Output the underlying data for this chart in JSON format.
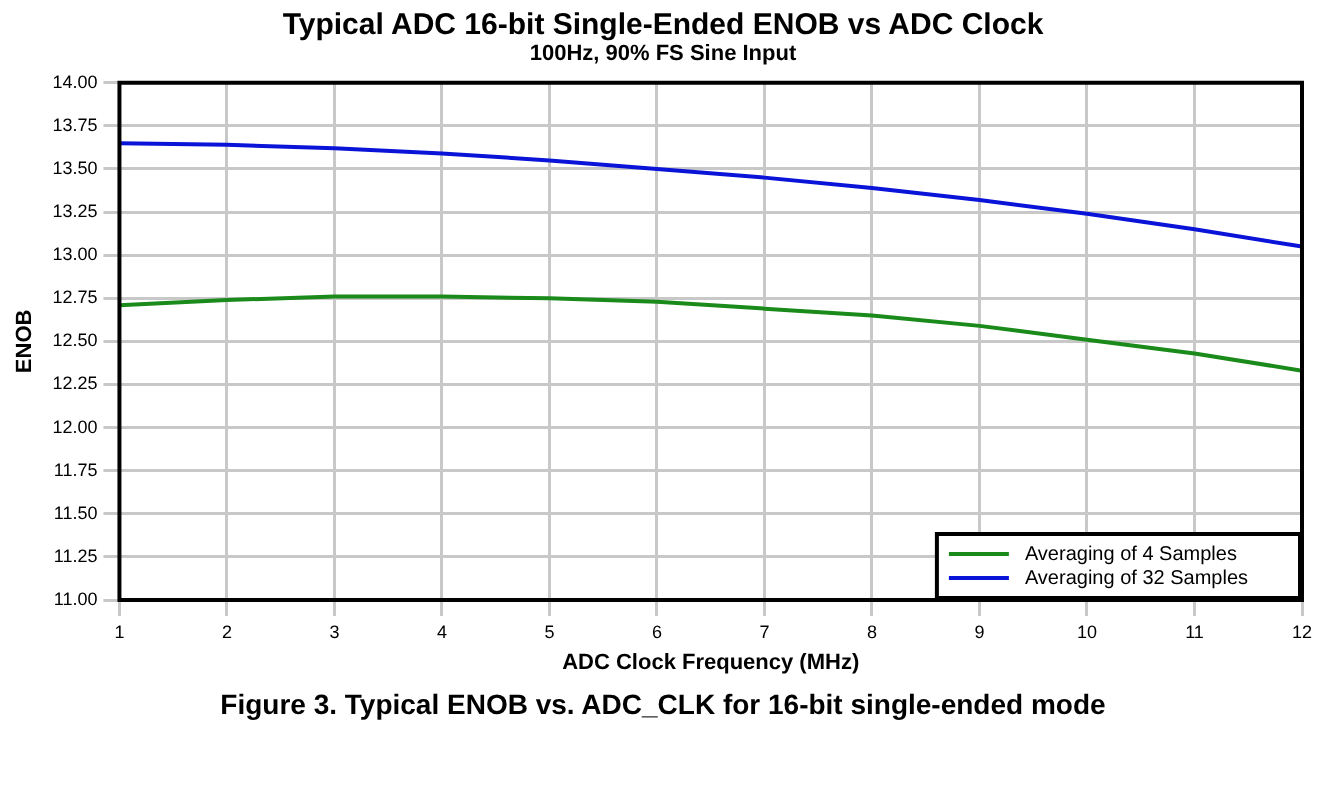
{
  "chart_data": {
    "type": "line",
    "title": "Typical ADC 16-bit Single-Ended ENOB vs ADC Clock",
    "subtitle": "100Hz, 90% FS Sine Input",
    "xlabel": "ADC Clock Frequency (MHz)",
    "ylabel": "ENOB",
    "x": [
      1,
      2,
      3,
      4,
      5,
      6,
      7,
      8,
      9,
      10,
      11,
      12
    ],
    "series": [
      {
        "name": "Averaging of 4 Samples",
        "color": "#1a8a1a",
        "values": [
          12.71,
          12.74,
          12.76,
          12.76,
          12.75,
          12.73,
          12.69,
          12.65,
          12.59,
          12.51,
          12.43,
          12.33
        ]
      },
      {
        "name": "Averaging of 32 Samples",
        "color": "#0a14d8",
        "values": [
          13.65,
          13.64,
          13.62,
          13.59,
          13.55,
          13.5,
          13.45,
          13.39,
          13.32,
          13.24,
          13.15,
          13.05
        ]
      }
    ],
    "xlim": [
      1,
      12
    ],
    "xticks": [
      1,
      2,
      3,
      4,
      5,
      6,
      7,
      8,
      9,
      10,
      11,
      12
    ],
    "ylim": [
      11,
      14
    ],
    "yticks": [
      {
        "value": 11,
        "label": "11.00"
      },
      {
        "value": 11.25,
        "label": "11.25"
      },
      {
        "value": 11.5,
        "label": "11.50"
      },
      {
        "value": 11.75,
        "label": "11.75"
      },
      {
        "value": 12,
        "label": "12.00"
      },
      {
        "value": 12.25,
        "label": "12.25"
      },
      {
        "value": 12.5,
        "label": "12.50"
      },
      {
        "value": 12.75,
        "label": "12.75"
      },
      {
        "value": 13,
        "label": "13.00"
      },
      {
        "value": 13.25,
        "label": "13.25"
      },
      {
        "value": 13.5,
        "label": "13.50"
      },
      {
        "value": 13.75,
        "label": "13.75"
      },
      {
        "value": 14,
        "label": "14.00"
      }
    ],
    "grid": true,
    "legend": "bottom right",
    "marker": "none",
    "line_style": "solid",
    "annotations": [
      "Figure 3. Typical ENOB vs. ADC_CLK for 16-bit single-ended mode"
    ]
  }
}
